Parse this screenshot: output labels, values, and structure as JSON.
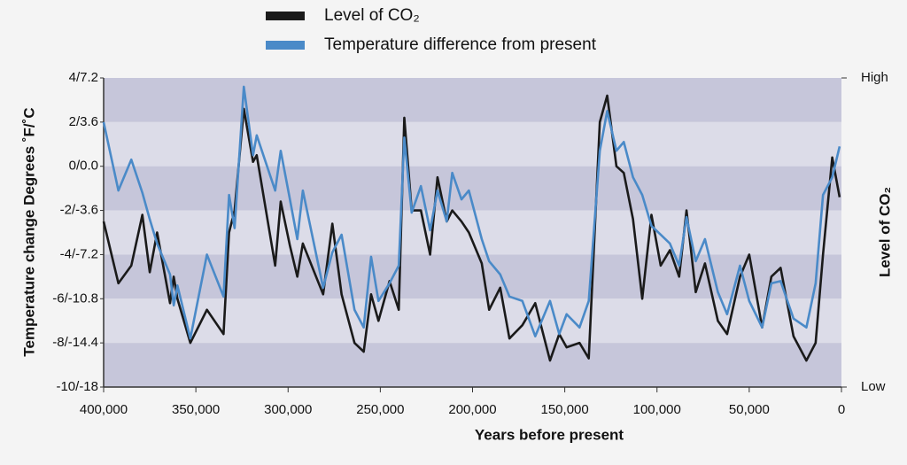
{
  "chart_data": {
    "type": "line",
    "xlabel": "Years before present",
    "ylabel": "Temperature change Degrees ˚F/˚C",
    "y2label": "Level of CO₂",
    "x": [
      400000,
      392000,
      385000,
      379000,
      375000,
      371000,
      364000,
      362000,
      360000,
      353000,
      344000,
      335000,
      332000,
      329000,
      324000,
      319000,
      317000,
      307000,
      304000,
      299000,
      295000,
      292000,
      281000,
      276000,
      271000,
      264000,
      259000,
      255000,
      251000,
      245000,
      240000,
      237000,
      233000,
      228000,
      223000,
      219000,
      214000,
      211000,
      206000,
      202000,
      195000,
      191000,
      185000,
      180000,
      173000,
      166000,
      158000,
      153000,
      149000,
      142000,
      137000,
      131000,
      127000,
      122000,
      118000,
      113000,
      108000,
      103000,
      98000,
      93000,
      88000,
      84000,
      79000,
      74000,
      67000,
      62000,
      55000,
      50000,
      43000,
      38000,
      33000,
      26000,
      19000,
      14000,
      10000,
      5000,
      1000
    ],
    "series": [
      {
        "name": "Level of CO₂",
        "color": "#1a1a1a",
        "axis": "y2",
        "values": [
          -2.5,
          -5.3,
          -4.5,
          -2.2,
          -4.8,
          -3.0,
          -6.2,
          -5.0,
          -6.0,
          -8.0,
          -6.5,
          -7.6,
          -3.0,
          -2.0,
          2.6,
          0.2,
          0.5,
          -4.5,
          -1.6,
          -3.6,
          -5.0,
          -3.5,
          -5.8,
          -2.6,
          -5.8,
          -8.0,
          -8.4,
          -5.8,
          -7.0,
          -5.2,
          -6.5,
          2.2,
          -2.0,
          -2.0,
          -4.0,
          -0.5,
          -2.5,
          -2.0,
          -2.5,
          -3.0,
          -4.4,
          -6.5,
          -5.5,
          -7.8,
          -7.2,
          -6.2,
          -8.8,
          -7.6,
          -8.2,
          -8.0,
          -8.7,
          2.0,
          3.2,
          0.0,
          -0.3,
          -2.4,
          -6.0,
          -2.2,
          -4.5,
          -3.8,
          -5.0,
          -2.0,
          -5.7,
          -4.4,
          -7.0,
          -7.6,
          -5.0,
          -4.0,
          -7.3,
          -5.0,
          -4.6,
          -7.7,
          -8.8,
          -8.0,
          -4.0,
          0.4,
          -1.4
        ]
      },
      {
        "name": "Temperature difference from present",
        "color": "#4a8ac8",
        "values": [
          2.0,
          -1.1,
          0.3,
          -1.2,
          -2.4,
          -3.5,
          -4.9,
          -6.3,
          -5.4,
          -7.8,
          -4.0,
          -5.9,
          -1.3,
          -2.8,
          3.6,
          0.5,
          1.4,
          -1.1,
          0.7,
          -1.5,
          -3.3,
          -1.1,
          -5.5,
          -3.9,
          -3.1,
          -6.5,
          -7.3,
          -4.1,
          -6.1,
          -5.3,
          -4.5,
          1.3,
          -2.1,
          -0.9,
          -2.9,
          -1.1,
          -2.5,
          -0.3,
          -1.5,
          -1.1,
          -3.3,
          -4.3,
          -4.9,
          -5.9,
          -6.1,
          -7.7,
          -6.1,
          -7.6,
          -6.7,
          -7.3,
          -6.1,
          0.7,
          2.5,
          0.7,
          1.1,
          -0.5,
          -1.3,
          -2.7,
          -3.1,
          -3.5,
          -4.5,
          -2.3,
          -4.3,
          -3.3,
          -5.7,
          -6.7,
          -4.5,
          -6.1,
          -7.3,
          -5.3,
          -5.2,
          -6.9,
          -7.3,
          -5.3,
          -1.3,
          -0.5,
          0.9
        ]
      }
    ],
    "xlim": [
      400000,
      0
    ],
    "xticks": [
      {
        "value": 400000,
        "label": "400,000"
      },
      {
        "value": 350000,
        "label": "350,000"
      },
      {
        "value": 300000,
        "label": "300,000"
      },
      {
        "value": 250000,
        "label": "250,000"
      },
      {
        "value": 200000,
        "label": "200,000"
      },
      {
        "value": 150000,
        "label": "150,000"
      },
      {
        "value": 100000,
        "label": "100,000"
      },
      {
        "value": 50000,
        "label": "50,000"
      },
      0
    ],
    "ylim": [
      -10,
      4
    ],
    "yticks": [
      {
        "value": 4,
        "label": "4/7.2"
      },
      {
        "value": 2,
        "label": "2/3.6"
      },
      {
        "value": 0,
        "label": "0/0.0"
      },
      {
        "value": -2,
        "label": "-2/-3.6"
      },
      {
        "value": -4,
        "label": "-4/-7.2"
      },
      {
        "value": -6,
        "label": "-6/-10.8"
      },
      {
        "value": -8,
        "label": "-8/-14.4"
      },
      {
        "value": -10,
        "label": "-10/-18"
      }
    ],
    "y2lim": [
      -10,
      4
    ],
    "y2ticks": [
      {
        "value": 4,
        "label": "High"
      },
      {
        "value": -10,
        "label": "Low"
      }
    ],
    "grid": true
  }
}
